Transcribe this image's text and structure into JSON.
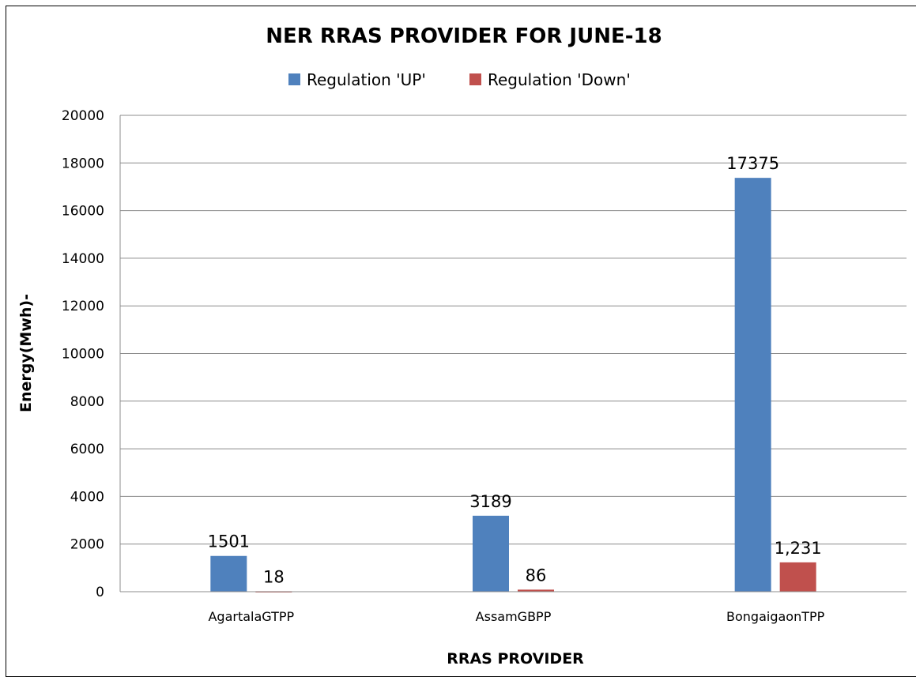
{
  "chart_data": {
    "type": "bar",
    "title": "NER RRAS PROVIDER FOR JUNE-18",
    "xlabel": "RRAS PROVIDER",
    "ylabel": "Energy(Mwh)-",
    "categories": [
      "AgartalaGTPP",
      "AssamGBPP",
      "BongaigaonTPP"
    ],
    "series": [
      {
        "name": "Regulation 'UP'",
        "color": "#4f81bd",
        "values": [
          1501,
          3189,
          17375
        ],
        "labels": [
          "1501",
          "3189",
          "17375"
        ]
      },
      {
        "name": "Regulation 'Down'",
        "color": "#c0504d",
        "values": [
          18,
          86,
          1231
        ],
        "labels": [
          "18",
          "86",
          "1,231"
        ]
      }
    ],
    "ylim": [
      0,
      20000
    ],
    "yticks": [
      0,
      2000,
      4000,
      6000,
      8000,
      10000,
      12000,
      14000,
      16000,
      18000,
      20000
    ],
    "grid": true,
    "legend_position": "top"
  }
}
